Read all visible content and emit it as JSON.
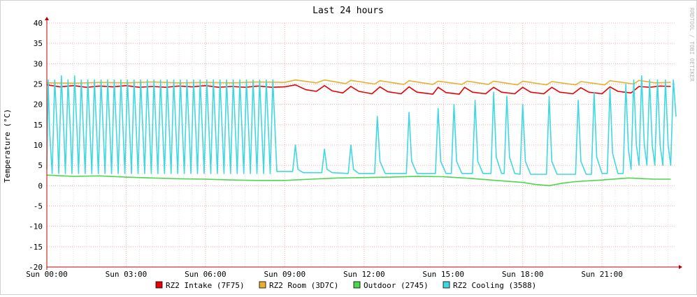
{
  "chart_data": {
    "type": "line",
    "title": "Last 24 hours",
    "ylabel": "Temperature (°C)",
    "xlabel": "",
    "watermark": "RRDTOOL / TOBI OETIKER",
    "ylim": [
      -20,
      40
    ],
    "xlim_hours": [
      0,
      23.8
    ],
    "y_ticks": [
      40,
      35,
      30,
      25,
      20,
      15,
      10,
      5,
      0,
      -5,
      -10,
      -15,
      -20
    ],
    "x_ticks": [
      {
        "hour": 0,
        "label": "Sun 00:00"
      },
      {
        "hour": 3,
        "label": "Sun 03:00"
      },
      {
        "hour": 6,
        "label": "Sun 06:00"
      },
      {
        "hour": 9,
        "label": "Sun 09:00"
      },
      {
        "hour": 12,
        "label": "Sun 12:00"
      },
      {
        "hour": 15,
        "label": "Sun 15:00"
      },
      {
        "hour": 18,
        "label": "Sun 18:00"
      },
      {
        "hour": 21,
        "label": "Sun 21:00"
      }
    ],
    "grid": true,
    "legend_position": "bottom",
    "colors": {
      "RZ2 Intake (7F75)": "#e80000",
      "RZ2 Room (3D7C)": "#e8b030",
      "Outdoor (2745)": "#4cd84c",
      "RZ2 Cooling (3588)": "#40d8e0",
      "grid_major": "#f0b0b0",
      "grid_minor": "#e0e0e0",
      "axis": "#c00000"
    },
    "series": [
      {
        "name": "RZ2 Intake (7F75)",
        "points": [
          [
            0,
            24.8
          ],
          [
            0.5,
            24.3
          ],
          [
            1,
            24.6
          ],
          [
            1.5,
            24.2
          ],
          [
            2,
            24.5
          ],
          [
            2.5,
            24.3
          ],
          [
            3,
            24.6
          ],
          [
            3.5,
            24.2
          ],
          [
            4,
            24.4
          ],
          [
            4.5,
            24.2
          ],
          [
            5,
            24.5
          ],
          [
            5.5,
            24.3
          ],
          [
            6,
            24.6
          ],
          [
            6.5,
            24.2
          ],
          [
            7,
            24.4
          ],
          [
            7.5,
            24.2
          ],
          [
            8,
            24.5
          ],
          [
            8.5,
            24.2
          ],
          [
            9,
            24.3
          ],
          [
            9.4,
            24.8
          ],
          [
            9.8,
            23.6
          ],
          [
            10.2,
            23.2
          ],
          [
            10.5,
            24.6
          ],
          [
            10.8,
            23.3
          ],
          [
            11.2,
            22.8
          ],
          [
            11.5,
            24.4
          ],
          [
            11.8,
            23.2
          ],
          [
            12.3,
            22.6
          ],
          [
            12.6,
            24.3
          ],
          [
            12.9,
            23.1
          ],
          [
            13.4,
            22.6
          ],
          [
            13.7,
            24.3
          ],
          [
            14,
            23.0
          ],
          [
            14.6,
            22.5
          ],
          [
            14.8,
            24.2
          ],
          [
            15.1,
            22.9
          ],
          [
            15.6,
            22.5
          ],
          [
            15.8,
            24.2
          ],
          [
            16.1,
            23.0
          ],
          [
            16.6,
            22.6
          ],
          [
            16.9,
            24.2
          ],
          [
            17.2,
            23.0
          ],
          [
            17.7,
            22.6
          ],
          [
            18.0,
            24.2
          ],
          [
            18.3,
            23.0
          ],
          [
            18.8,
            22.6
          ],
          [
            19.1,
            24.2
          ],
          [
            19.4,
            23.0
          ],
          [
            19.9,
            22.6
          ],
          [
            20.2,
            24.1
          ],
          [
            20.5,
            23.0
          ],
          [
            21.0,
            22.6
          ],
          [
            21.3,
            24.3
          ],
          [
            21.6,
            23.2
          ],
          [
            22.1,
            22.8
          ],
          [
            22.4,
            24.4
          ],
          [
            22.8,
            24.2
          ],
          [
            23.2,
            24.5
          ],
          [
            23.6,
            24.4
          ]
        ]
      },
      {
        "name": "RZ2 Room (3D7C)",
        "points": [
          [
            0,
            25.3
          ],
          [
            1,
            25.2
          ],
          [
            2,
            25.4
          ],
          [
            3,
            25.3
          ],
          [
            4,
            25.5
          ],
          [
            5,
            25.3
          ],
          [
            6,
            25.4
          ],
          [
            7,
            25.3
          ],
          [
            8,
            25.5
          ],
          [
            9,
            25.4
          ],
          [
            9.4,
            26.0
          ],
          [
            10.2,
            25.3
          ],
          [
            10.5,
            26.0
          ],
          [
            11.3,
            25.1
          ],
          [
            11.5,
            25.9
          ],
          [
            12.4,
            25.0
          ],
          [
            12.6,
            25.8
          ],
          [
            13.5,
            24.9
          ],
          [
            13.7,
            25.8
          ],
          [
            14.6,
            24.9
          ],
          [
            14.8,
            25.7
          ],
          [
            15.7,
            24.9
          ],
          [
            15.9,
            25.7
          ],
          [
            16.7,
            24.9
          ],
          [
            16.9,
            25.7
          ],
          [
            17.8,
            24.8
          ],
          [
            18.0,
            25.7
          ],
          [
            18.9,
            24.8
          ],
          [
            19.1,
            25.6
          ],
          [
            20.0,
            24.8
          ],
          [
            20.2,
            25.6
          ],
          [
            21.1,
            24.8
          ],
          [
            21.3,
            25.8
          ],
          [
            22.2,
            25.0
          ],
          [
            22.4,
            25.9
          ],
          [
            23.0,
            25.3
          ],
          [
            23.6,
            25.4
          ]
        ]
      },
      {
        "name": "Outdoor (2745)",
        "points": [
          [
            0,
            2.6
          ],
          [
            1,
            2.3
          ],
          [
            2,
            2.4
          ],
          [
            3,
            2.1
          ],
          [
            4,
            1.9
          ],
          [
            5,
            1.7
          ],
          [
            6,
            1.6
          ],
          [
            7,
            1.4
          ],
          [
            8,
            1.3
          ],
          [
            9,
            1.3
          ],
          [
            10,
            1.6
          ],
          [
            11,
            1.9
          ],
          [
            12,
            2.0
          ],
          [
            13,
            2.1
          ],
          [
            14,
            2.3
          ],
          [
            15,
            2.2
          ],
          [
            16,
            1.8
          ],
          [
            17,
            1.3
          ],
          [
            18,
            0.8
          ],
          [
            18.5,
            0.3
          ],
          [
            19,
            0.0
          ],
          [
            19.5,
            0.6
          ],
          [
            20,
            1.0
          ],
          [
            21,
            1.4
          ],
          [
            22,
            1.9
          ],
          [
            23,
            1.6
          ],
          [
            23.6,
            1.6
          ]
        ]
      },
      {
        "name": "RZ2 Cooling (3588)",
        "points": [
          [
            0,
            4
          ],
          [
            0.05,
            26
          ],
          [
            0.1,
            14
          ],
          [
            0.2,
            3
          ],
          [
            0.3,
            26
          ],
          [
            0.4,
            13
          ],
          [
            0.45,
            3
          ],
          [
            0.55,
            27
          ],
          [
            0.65,
            12
          ],
          [
            0.7,
            3
          ],
          [
            0.8,
            26
          ],
          [
            0.9,
            12
          ],
          [
            0.95,
            3
          ],
          [
            1.05,
            27
          ],
          [
            1.15,
            12
          ],
          [
            1.2,
            3
          ],
          [
            1.3,
            26
          ],
          [
            1.4,
            11
          ],
          [
            1.45,
            3
          ],
          [
            1.55,
            26
          ],
          [
            1.65,
            11
          ],
          [
            1.7,
            3
          ],
          [
            1.8,
            26
          ],
          [
            1.9,
            11
          ],
          [
            1.95,
            3
          ],
          [
            2.05,
            26
          ],
          [
            2.15,
            11
          ],
          [
            2.2,
            3
          ],
          [
            2.3,
            26
          ],
          [
            2.4,
            11
          ],
          [
            2.45,
            3
          ],
          [
            2.55,
            26
          ],
          [
            2.65,
            11
          ],
          [
            2.7,
            3
          ],
          [
            2.8,
            26
          ],
          [
            2.9,
            11
          ],
          [
            2.95,
            3
          ],
          [
            3.05,
            26
          ],
          [
            3.15,
            11
          ],
          [
            3.2,
            3
          ],
          [
            3.3,
            26
          ],
          [
            3.4,
            11
          ],
          [
            3.45,
            3
          ],
          [
            3.55,
            26
          ],
          [
            3.65,
            11
          ],
          [
            3.7,
            3
          ],
          [
            3.8,
            26
          ],
          [
            3.9,
            11
          ],
          [
            3.95,
            3
          ],
          [
            4.05,
            26
          ],
          [
            4.15,
            11
          ],
          [
            4.2,
            3
          ],
          [
            4.3,
            26
          ],
          [
            4.4,
            11
          ],
          [
            4.45,
            3
          ],
          [
            4.55,
            26
          ],
          [
            4.65,
            11
          ],
          [
            4.7,
            3
          ],
          [
            4.8,
            26
          ],
          [
            4.9,
            11
          ],
          [
            4.95,
            3
          ],
          [
            5.05,
            26
          ],
          [
            5.15,
            11
          ],
          [
            5.2,
            3
          ],
          [
            5.3,
            26
          ],
          [
            5.4,
            11
          ],
          [
            5.45,
            3
          ],
          [
            5.55,
            26
          ],
          [
            5.65,
            11
          ],
          [
            5.7,
            3
          ],
          [
            5.8,
            26
          ],
          [
            5.9,
            11
          ],
          [
            5.95,
            3
          ],
          [
            6.05,
            26
          ],
          [
            6.15,
            11
          ],
          [
            6.2,
            3
          ],
          [
            6.3,
            26
          ],
          [
            6.4,
            11
          ],
          [
            6.45,
            3
          ],
          [
            6.55,
            26
          ],
          [
            6.65,
            11
          ],
          [
            6.7,
            3
          ],
          [
            6.8,
            26
          ],
          [
            6.9,
            11
          ],
          [
            6.95,
            3
          ],
          [
            7.05,
            26
          ],
          [
            7.15,
            11
          ],
          [
            7.2,
            3
          ],
          [
            7.3,
            26
          ],
          [
            7.4,
            11
          ],
          [
            7.45,
            3
          ],
          [
            7.55,
            26
          ],
          [
            7.65,
            11
          ],
          [
            7.7,
            3
          ],
          [
            7.8,
            26
          ],
          [
            7.9,
            11
          ],
          [
            7.95,
            3
          ],
          [
            8.05,
            26
          ],
          [
            8.15,
            11
          ],
          [
            8.2,
            3
          ],
          [
            8.3,
            26
          ],
          [
            8.4,
            11
          ],
          [
            8.45,
            3
          ],
          [
            8.55,
            26
          ],
          [
            8.65,
            11
          ],
          [
            8.7,
            3.5
          ],
          [
            9.3,
            3.5
          ],
          [
            9.4,
            10
          ],
          [
            9.5,
            4
          ],
          [
            9.7,
            3.2
          ],
          [
            10.4,
            3.2
          ],
          [
            10.5,
            9
          ],
          [
            10.6,
            4
          ],
          [
            10.8,
            3.2
          ],
          [
            11.4,
            3.0
          ],
          [
            11.5,
            10
          ],
          [
            11.6,
            4
          ],
          [
            11.8,
            3.0
          ],
          [
            12.4,
            3.0
          ],
          [
            12.5,
            17
          ],
          [
            12.6,
            6
          ],
          [
            12.8,
            3.0
          ],
          [
            13.6,
            3.0
          ],
          [
            13.7,
            18
          ],
          [
            13.8,
            6
          ],
          [
            14.0,
            3.0
          ],
          [
            14.7,
            3.0
          ],
          [
            14.8,
            19
          ],
          [
            14.9,
            6
          ],
          [
            15.1,
            3.0
          ],
          [
            15.3,
            3.0
          ],
          [
            15.4,
            20
          ],
          [
            15.5,
            6
          ],
          [
            15.7,
            3.0
          ],
          [
            16.1,
            3.0
          ],
          [
            16.2,
            21
          ],
          [
            16.3,
            6
          ],
          [
            16.5,
            3.0
          ],
          [
            16.8,
            3.0
          ],
          [
            16.9,
            23
          ],
          [
            17.0,
            7
          ],
          [
            17.2,
            3.0
          ],
          [
            17.3,
            3.0
          ],
          [
            17.4,
            22
          ],
          [
            17.5,
            7
          ],
          [
            17.7,
            3.0
          ],
          [
            17.9,
            2.8
          ],
          [
            18.0,
            20
          ],
          [
            18.1,
            6
          ],
          [
            18.3,
            2.8
          ],
          [
            18.9,
            2.8
          ],
          [
            19.0,
            22
          ],
          [
            19.1,
            6
          ],
          [
            19.3,
            2.8
          ],
          [
            20.0,
            2.8
          ],
          [
            20.1,
            21
          ],
          [
            20.2,
            6
          ],
          [
            20.4,
            2.8
          ],
          [
            20.6,
            2.8
          ],
          [
            20.7,
            23
          ],
          [
            20.8,
            7
          ],
          [
            21.0,
            3.0
          ],
          [
            21.2,
            3.0
          ],
          [
            21.3,
            24
          ],
          [
            21.4,
            8
          ],
          [
            21.6,
            3.0
          ],
          [
            21.8,
            3.0
          ],
          [
            21.9,
            25
          ],
          [
            22.0,
            9
          ],
          [
            22.1,
            4
          ],
          [
            22.2,
            26
          ],
          [
            22.3,
            10
          ],
          [
            22.4,
            5
          ],
          [
            22.5,
            27
          ],
          [
            22.6,
            10
          ],
          [
            22.7,
            5
          ],
          [
            22.8,
            26
          ],
          [
            22.9,
            10
          ],
          [
            23.0,
            5
          ],
          [
            23.1,
            26
          ],
          [
            23.2,
            10
          ],
          [
            23.3,
            5
          ],
          [
            23.4,
            26
          ],
          [
            23.5,
            10
          ],
          [
            23.6,
            5
          ],
          [
            23.7,
            26
          ],
          [
            23.8,
            17
          ]
        ]
      }
    ]
  }
}
